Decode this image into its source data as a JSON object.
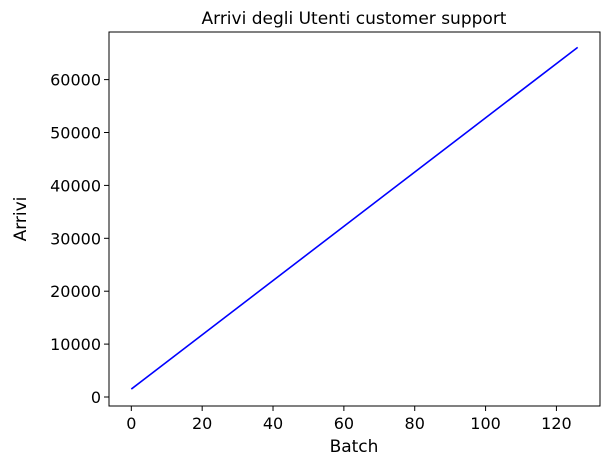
{
  "chart_data": {
    "type": "line",
    "title": "Arrivi degli Utenti customer support",
    "xlabel": "Batch",
    "ylabel": "Arrivi",
    "xlim": [
      -6.3,
      132.3
    ],
    "ylim": [
      -1700,
      69000
    ],
    "xticks": [
      0,
      20,
      40,
      60,
      80,
      100,
      120
    ],
    "yticks": [
      0,
      10000,
      20000,
      30000,
      40000,
      50000,
      60000
    ],
    "grid": false,
    "series": [
      {
        "color": "#0000ff",
        "x": [
          0,
          126
        ],
        "y": [
          1500,
          66100
        ]
      }
    ]
  }
}
